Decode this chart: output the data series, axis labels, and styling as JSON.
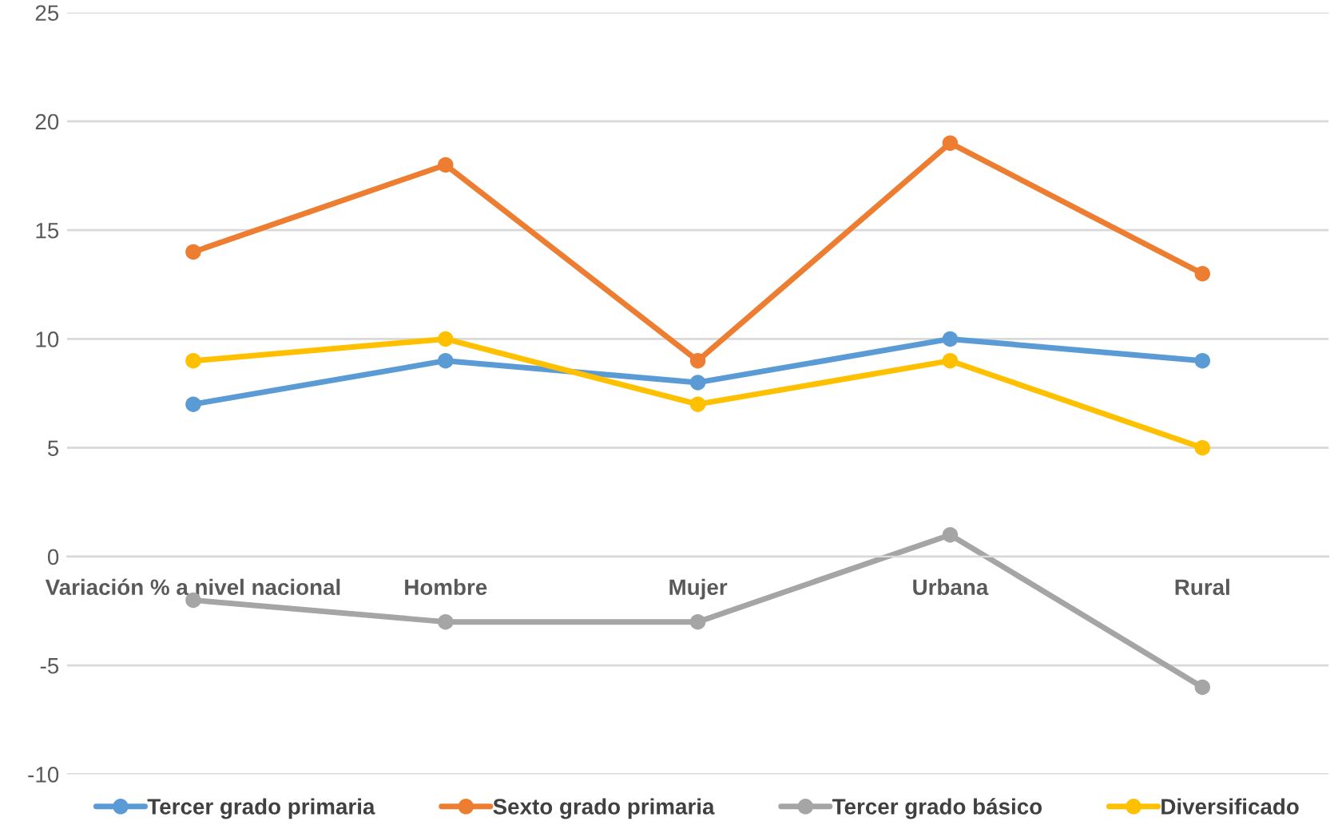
{
  "chart_data": {
    "type": "line",
    "categories": [
      "Variación % a nivel nacional",
      "Hombre",
      "Mujer",
      "Urbana",
      "Rural"
    ],
    "series": [
      {
        "name": "Tercer grado primaria",
        "color": "#5b9bd5",
        "values": [
          7,
          9,
          8,
          10,
          9
        ]
      },
      {
        "name": "Sexto grado primaria",
        "color": "#ed7d31",
        "values": [
          14,
          18,
          9,
          19,
          13
        ]
      },
      {
        "name": "Tercer grado básico",
        "color": "#a5a5a5",
        "values": [
          -2,
          -3,
          -3,
          1,
          -6
        ]
      },
      {
        "name": "Diversificado",
        "color": "#ffc000",
        "values": [
          9,
          10,
          7,
          9,
          5
        ]
      }
    ],
    "ylim": [
      -10,
      25
    ],
    "yticks": [
      -10,
      -5,
      0,
      5,
      10,
      15,
      20,
      25
    ],
    "grid": "y",
    "legend": "bottom",
    "marker": "circle",
    "line_style": "solid"
  }
}
